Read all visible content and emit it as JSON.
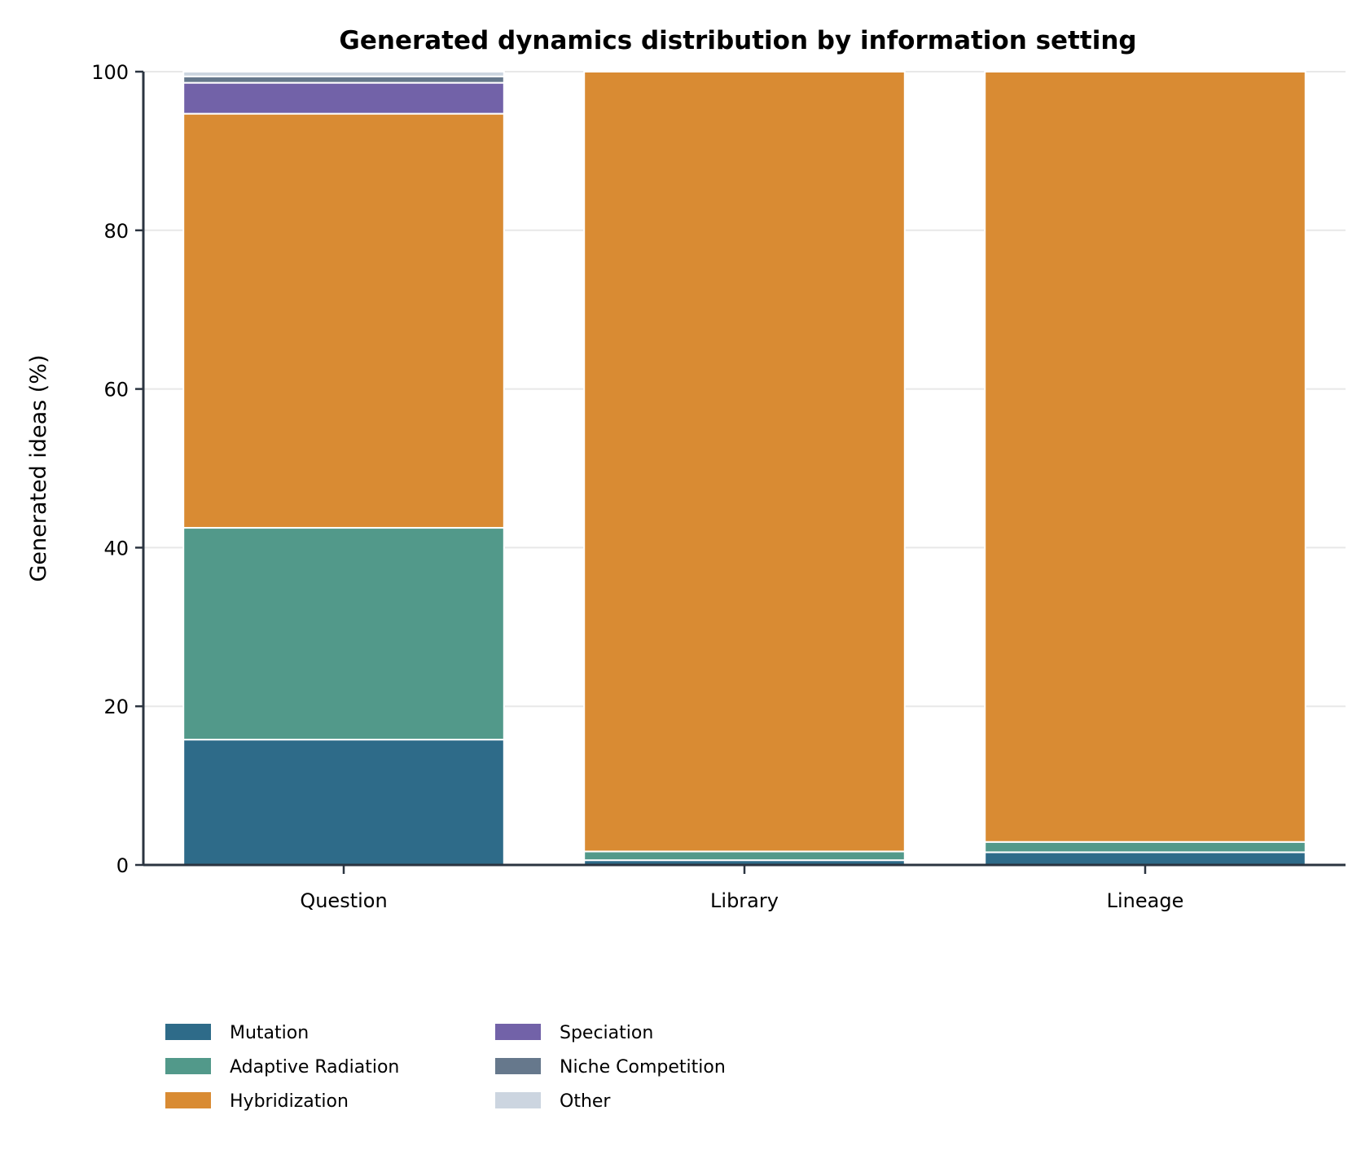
{
  "chart_data": {
    "type": "bar",
    "stacked": true,
    "title": "Generated dynamics distribution by information setting",
    "xlabel": "",
    "ylabel": "Generated ideas (%)",
    "ylim": [
      0,
      100
    ],
    "yticks": [
      0,
      20,
      40,
      60,
      80,
      100
    ],
    "grid": "horizontal",
    "legend_position": "bottom-left",
    "categories": [
      "Question",
      "Library",
      "Lineage"
    ],
    "series": [
      {
        "name": "Mutation",
        "color": "#2e6b89",
        "values": [
          15.8,
          0.6,
          1.6
        ]
      },
      {
        "name": "Adaptive Radiation",
        "color": "#52998a",
        "values": [
          26.7,
          1.1,
          1.3
        ]
      },
      {
        "name": "Hybridization",
        "color": "#d98b33",
        "values": [
          52.2,
          98.3,
          97.1
        ]
      },
      {
        "name": "Speciation",
        "color": "#7262a8",
        "values": [
          3.9,
          0.0,
          0.0
        ]
      },
      {
        "name": "Niche Competition",
        "color": "#66788c",
        "values": [
          0.8,
          0.0,
          0.0
        ]
      },
      {
        "name": "Other",
        "color": "#ccd5e0",
        "values": [
          0.6,
          0.0,
          0.0
        ]
      }
    ]
  }
}
